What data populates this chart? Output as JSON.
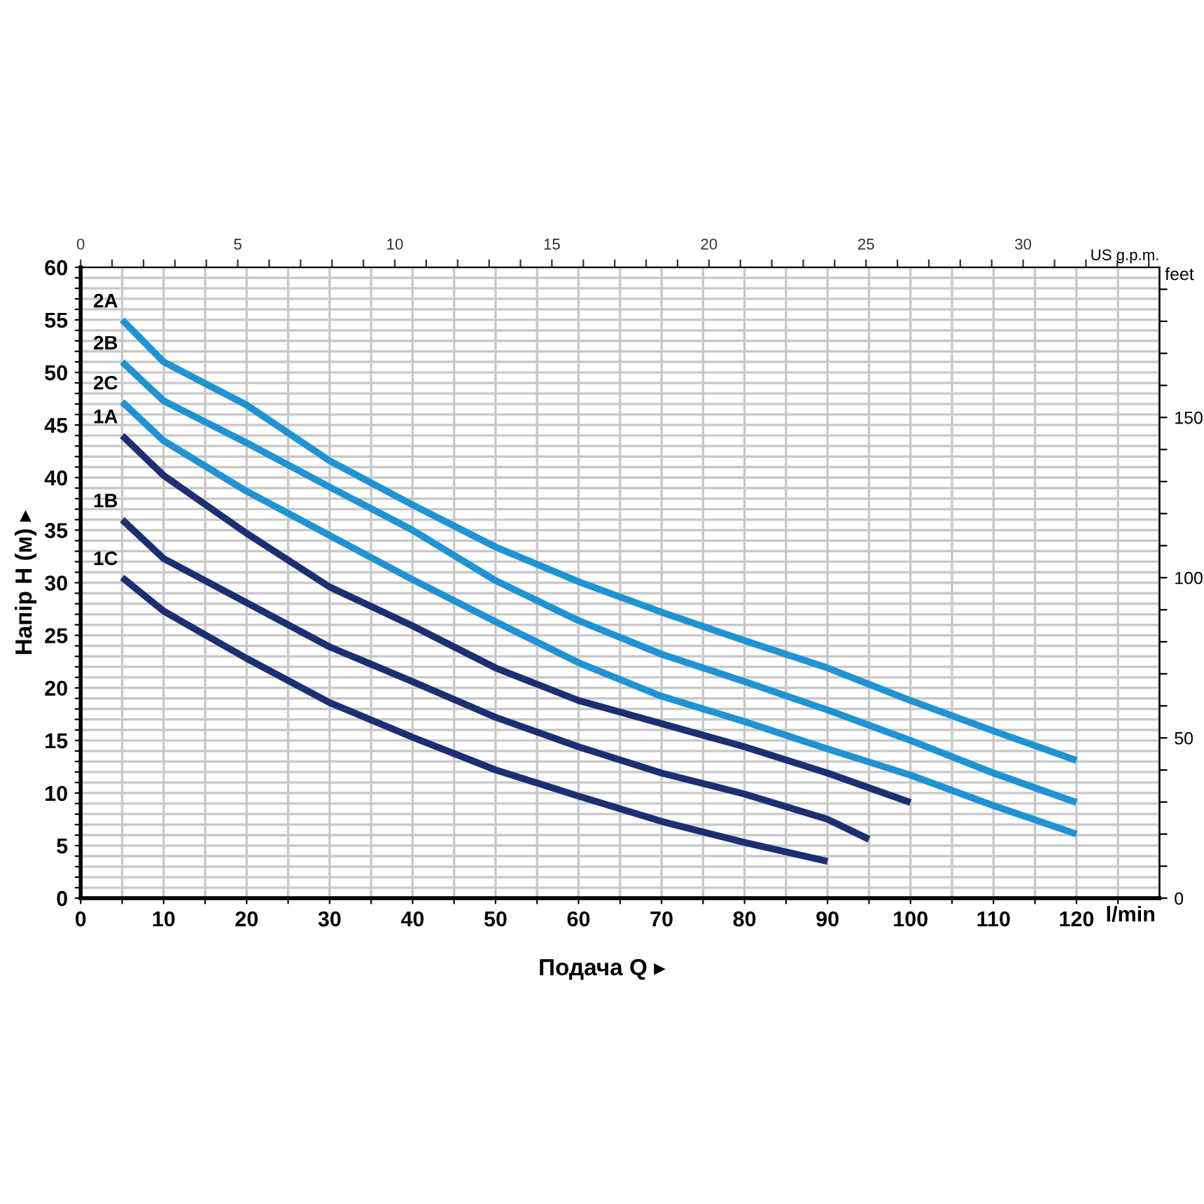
{
  "chart_data": {
    "type": "line",
    "xlabel": "Подача Q ▸",
    "ylabel": "Напір H (м) ▸",
    "y2label": "feet",
    "x2label": "US g.p.m.",
    "annotations": [
      "l/min"
    ],
    "x": [
      5,
      10,
      20,
      30,
      40,
      50,
      60,
      70,
      80,
      90,
      100,
      110,
      120
    ],
    "series": [
      {
        "name": "2A",
        "color": "#1f93d3",
        "values": [
          55,
          51,
          46.9,
          41.6,
          37.4,
          33.4,
          30.1,
          27.2,
          24.5,
          21.9,
          18.8,
          15.9,
          13.1
        ]
      },
      {
        "name": "2B",
        "color": "#1f93d3",
        "values": [
          51,
          47.3,
          43.3,
          39.1,
          35.0,
          30.2,
          26.4,
          23.2,
          20.6,
          17.9,
          15.0,
          11.9,
          9.1
        ]
      },
      {
        "name": "2C",
        "color": "#1f93d3",
        "values": [
          47.2,
          43.5,
          38.7,
          34.5,
          30.3,
          26.3,
          22.4,
          19.2,
          16.8,
          14.2,
          11.7,
          8.8,
          6.1
        ]
      },
      {
        "name": "1A",
        "color": "#1c2f72",
        "values": [
          44,
          40.2,
          34.7,
          29.6,
          25.9,
          21.9,
          18.8,
          16.6,
          14.4,
          11.9,
          9.1,
          null,
          null
        ]
      },
      {
        "name": "1B",
        "color": "#1c2f72",
        "x": [
          5,
          10,
          20,
          30,
          40,
          50,
          60,
          70,
          80,
          90,
          95
        ],
        "values": [
          36,
          32.3,
          28.1,
          23.9,
          20.6,
          17.2,
          14.4,
          11.9,
          9.9,
          7.5,
          5.6
        ]
      },
      {
        "name": "1C",
        "color": "#1c2f72",
        "values": [
          30.5,
          27.3,
          22.8,
          18.6,
          15.3,
          12.2,
          9.7,
          7.3,
          5.3,
          3.5,
          null,
          null,
          null
        ]
      }
    ],
    "xlim": [
      0,
      130
    ],
    "ylim": [
      0,
      60
    ],
    "xticks": [
      0,
      {
        "value": 5,
        "label": null
      },
      10,
      {
        "value": 15,
        "label": null
      },
      20,
      {
        "value": 25,
        "label": null
      },
      30,
      {
        "value": 35,
        "label": null
      },
      40,
      {
        "value": 45,
        "label": null
      },
      50,
      {
        "value": 55,
        "label": null
      },
      60,
      {
        "value": 65,
        "label": null
      },
      70,
      {
        "value": 75,
        "label": null
      },
      80,
      {
        "value": 85,
        "label": null
      },
      90,
      {
        "value": 95,
        "label": null
      },
      100,
      {
        "value": 105,
        "label": null
      },
      110,
      {
        "value": 115,
        "label": null
      },
      120,
      {
        "value": 125,
        "label": null
      }
    ],
    "yticks": [
      0,
      {
        "value": 1,
        "label": null
      },
      {
        "value": 2,
        "label": null
      },
      {
        "value": 3,
        "label": null
      },
      {
        "value": 4,
        "label": null
      },
      5,
      {
        "value": 6,
        "label": null
      },
      {
        "value": 7,
        "label": null
      },
      {
        "value": 8,
        "label": null
      },
      {
        "value": 9,
        "label": null
      },
      10,
      {
        "value": 11,
        "label": null
      },
      {
        "value": 12,
        "label": null
      },
      {
        "value": 13,
        "label": null
      },
      {
        "value": 14,
        "label": null
      },
      15,
      {
        "value": 16,
        "label": null
      },
      {
        "value": 17,
        "label": null
      },
      {
        "value": 18,
        "label": null
      },
      {
        "value": 19,
        "label": null
      },
      20,
      {
        "value": 21,
        "label": null
      },
      {
        "value": 22,
        "label": null
      },
      {
        "value": 23,
        "label": null
      },
      {
        "value": 24,
        "label": null
      },
      25,
      {
        "value": 26,
        "label": null
      },
      {
        "value": 27,
        "label": null
      },
      {
        "value": 28,
        "label": null
      },
      {
        "value": 29,
        "label": null
      },
      30,
      {
        "value": 31,
        "label": null
      },
      {
        "value": 32,
        "label": null
      },
      {
        "value": 33,
        "label": null
      },
      {
        "value": 34,
        "label": null
      },
      35,
      {
        "value": 36,
        "label": null
      },
      {
        "value": 37,
        "label": null
      },
      {
        "value": 38,
        "label": null
      },
      {
        "value": 39,
        "label": null
      },
      40,
      {
        "value": 41,
        "label": null
      },
      {
        "value": 42,
        "label": null
      },
      {
        "value": 43,
        "label": null
      },
      {
        "value": 44,
        "label": null
      },
      45,
      {
        "value": 46,
        "label": null
      },
      {
        "value": 47,
        "label": null
      },
      {
        "value": 48,
        "label": null
      },
      {
        "value": 49,
        "label": null
      },
      50,
      {
        "value": 51,
        "label": null
      },
      {
        "value": 52,
        "label": null
      },
      {
        "value": 53,
        "label": null
      },
      {
        "value": 54,
        "label": null
      },
      55,
      {
        "value": 56,
        "label": null
      },
      {
        "value": 57,
        "label": null
      },
      {
        "value": 58,
        "label": null
      },
      {
        "value": 59,
        "label": null
      },
      60
    ],
    "y2lim": [
      0,
      196.85
    ],
    "y2ticks": [
      0,
      {
        "value": 10,
        "label": null
      },
      {
        "value": 20,
        "label": null
      },
      {
        "value": 30,
        "label": null
      },
      {
        "value": 40,
        "label": null
      },
      50,
      {
        "value": 60,
        "label": null
      },
      {
        "value": 70,
        "label": null
      },
      {
        "value": 80,
        "label": null
      },
      {
        "value": 90,
        "label": null
      },
      100,
      {
        "value": 110,
        "label": null
      },
      {
        "value": 120,
        "label": null
      },
      {
        "value": 130,
        "label": null
      },
      {
        "value": 140,
        "label": null
      },
      150,
      {
        "value": 160,
        "label": null
      },
      {
        "value": 170,
        "label": null
      },
      {
        "value": 180,
        "label": null
      },
      {
        "value": 190,
        "label": null
      }
    ],
    "x2lim": [
      0,
      34.34
    ],
    "x2ticks": [
      0,
      {
        "value": 1,
        "label": null
      },
      {
        "value": 2,
        "label": null
      },
      {
        "value": 3,
        "label": null
      },
      {
        "value": 4,
        "label": null
      },
      5,
      {
        "value": 6,
        "label": null
      },
      {
        "value": 7,
        "label": null
      },
      {
        "value": 8,
        "label": null
      },
      {
        "value": 9,
        "label": null
      },
      10,
      {
        "value": 11,
        "label": null
      },
      {
        "value": 12,
        "label": null
      },
      {
        "value": 13,
        "label": null
      },
      {
        "value": 14,
        "label": null
      },
      15,
      {
        "value": 16,
        "label": null
      },
      {
        "value": 17,
        "label": null
      },
      {
        "value": 18,
        "label": null
      },
      {
        "value": 19,
        "label": null
      },
      20,
      {
        "value": 21,
        "label": null
      },
      {
        "value": 22,
        "label": null
      },
      {
        "value": 23,
        "label": null
      },
      {
        "value": 24,
        "label": null
      },
      25,
      {
        "value": 26,
        "label": null
      },
      {
        "value": 27,
        "label": null
      },
      {
        "value": 28,
        "label": null
      },
      {
        "value": 29,
        "label": null
      },
      30,
      {
        "value": 31,
        "label": null
      },
      {
        "value": 32,
        "label": null
      },
      {
        "value": 33,
        "label": null
      },
      {
        "value": 34,
        "label": null
      }
    ],
    "grid": true,
    "legend": false,
    "marker": "none",
    "line_style": "solid"
  }
}
